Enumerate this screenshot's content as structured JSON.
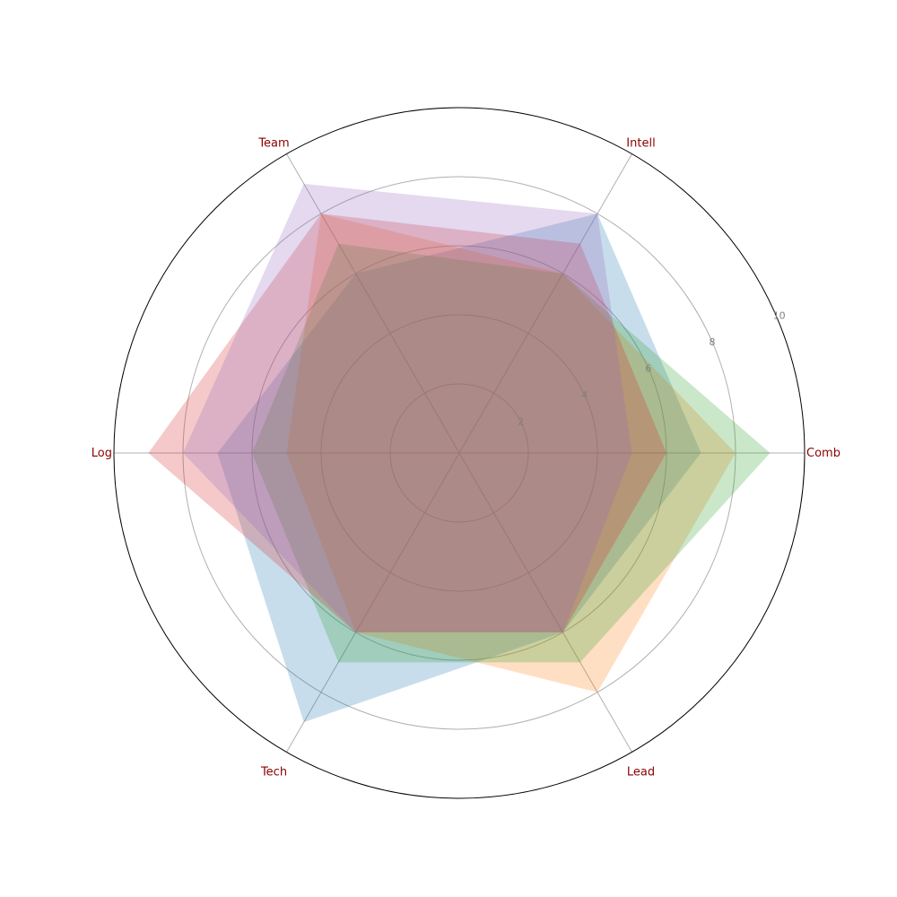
{
  "chart_data": {
    "type": "radar",
    "axes": [
      "Comb",
      "Intell",
      "Team",
      "Log",
      "Tech",
      "Lead"
    ],
    "radial_ticks": [
      "2",
      "4",
      "6",
      "8",
      "10"
    ],
    "rlim": [
      0,
      10
    ],
    "grid": true,
    "legend": "none",
    "series": [
      {
        "values": [
          7,
          8,
          6,
          7,
          9,
          6
        ],
        "color": "#1f77b4"
      },
      {
        "values": [
          8,
          6,
          8,
          5,
          6,
          8
        ],
        "color": "#ff7f0e"
      },
      {
        "values": [
          9,
          6,
          7,
          6,
          7,
          7
        ],
        "color": "#2ca02c"
      },
      {
        "values": [
          6,
          7,
          8,
          9,
          6,
          6
        ],
        "color": "#d62728"
      },
      {
        "values": [
          5,
          8,
          9,
          8,
          6,
          6
        ],
        "color": "#9467bd"
      }
    ]
  },
  "colors": {
    "axis_label": "#8b0000",
    "tick_label": "#808080",
    "grid": "#b0b0b0",
    "frame": "#000000"
  }
}
